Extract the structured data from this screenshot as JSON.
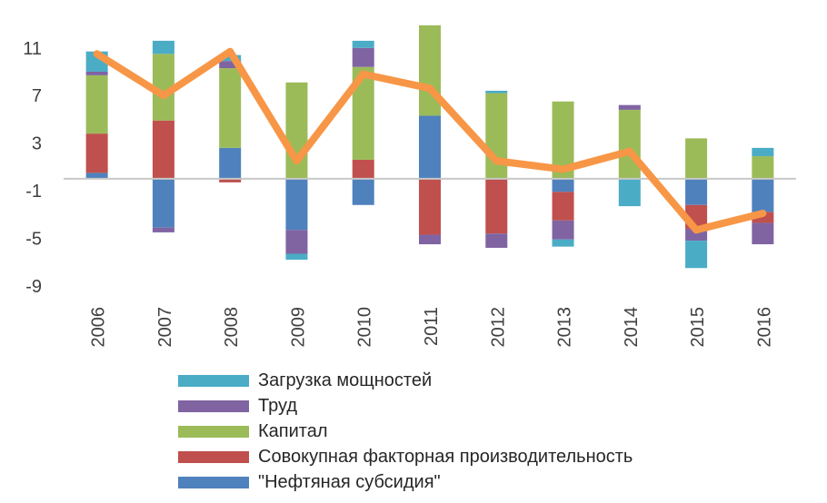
{
  "chart_data": {
    "type": "bar",
    "stacked": true,
    "categories": [
      "2006",
      "2007",
      "2008",
      "2009",
      "2010",
      "2011",
      "2012",
      "2013",
      "2014",
      "2015",
      "2016"
    ],
    "yticks": [
      11,
      7,
      3,
      -1,
      -5,
      -9
    ],
    "ylim": [
      -10,
      13.5
    ],
    "title": "",
    "xlabel": "",
    "ylabel": "",
    "legend_position": "bottom",
    "series": [
      {
        "name": "\"Нефтяная субсидия\"",
        "color": "#4f81bd",
        "values": [
          0.5,
          -4.1,
          2.6,
          -4.3,
          -2.2,
          5.3,
          0.0,
          -1.1,
          0.0,
          -2.2,
          -2.8
        ]
      },
      {
        "name": "Совокупная факторная производительность",
        "color": "#c0504d",
        "values": [
          3.3,
          4.9,
          -0.3,
          0.0,
          1.6,
          -4.7,
          -4.6,
          -2.4,
          0.0,
          -2.0,
          -0.9
        ]
      },
      {
        "name": "Капитал",
        "color": "#9bbb59",
        "values": [
          4.9,
          5.6,
          6.7,
          8.1,
          7.8,
          7.6,
          7.2,
          6.5,
          5.8,
          3.4,
          1.9
        ]
      },
      {
        "name": "Труд",
        "color": "#8064a2",
        "values": [
          0.3,
          -0.4,
          0.6,
          -2.0,
          1.6,
          -0.8,
          -1.2,
          -1.6,
          0.4,
          -1.0,
          -1.8
        ]
      },
      {
        "name": "Загрузка мощностей",
        "color": "#4bacc6",
        "values": [
          1.7,
          1.1,
          0.5,
          -0.5,
          0.6,
          0.0,
          0.2,
          -0.6,
          -2.3,
          -2.3,
          0.7
        ]
      }
    ],
    "line": {
      "color": "#f79646",
      "values": [
        10.5,
        7.0,
        10.7,
        1.5,
        8.8,
        7.6,
        1.5,
        0.8,
        2.3,
        -4.3,
        -2.9
      ]
    },
    "legend_order": [
      4,
      3,
      2,
      1,
      0
    ]
  }
}
